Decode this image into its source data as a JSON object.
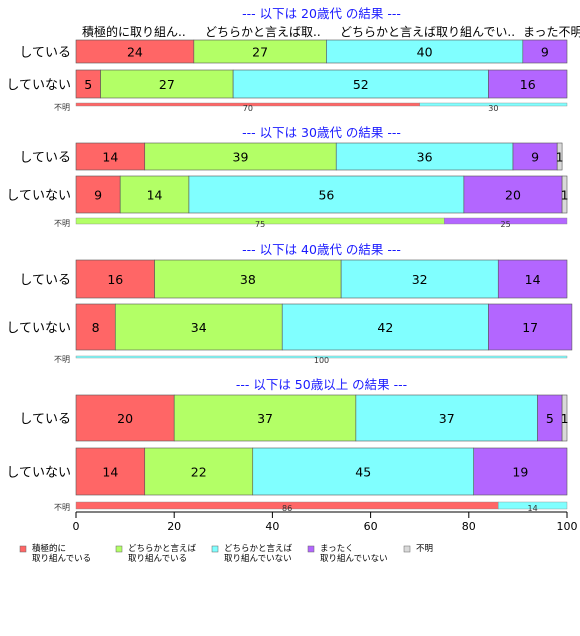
{
  "colors": {
    "series": [
      "#ff6666",
      "#b3ff66",
      "#80ffff",
      "#b366ff",
      "#d9d9d9"
    ],
    "title_text": "#1a1aff",
    "axis": "#000000"
  },
  "header_labels": [
    "積極的に取り組ん..",
    "どちらかと言えば取..",
    "どちらかと言えば取り組んでい..",
    "まった不明"
  ],
  "chart_data": {
    "type": "bar",
    "orientation": "horizontal",
    "stacked": true,
    "xlim": [
      0,
      100
    ],
    "x_ticks": [
      "0",
      "20",
      "40",
      "60",
      "80",
      "100"
    ],
    "legend_position": "bottom",
    "legend": [
      {
        "lines": [
          "積極的に",
          "取り組んでいる"
        ]
      },
      {
        "lines": [
          "どちらかと言えば",
          "取り組んでいる"
        ]
      },
      {
        "lines": [
          "どちらかと言えば",
          "取り組んでいない"
        ]
      },
      {
        "lines": [
          "まったく",
          "取り組んでいない"
        ]
      },
      {
        "lines": [
          "不明"
        ]
      }
    ],
    "panels": [
      {
        "title": "--- 以下は 20歳代 の結果 ---",
        "rows": [
          {
            "label": "している",
            "values": [
              24,
              27,
              40,
              9,
              0
            ]
          },
          {
            "label": "していない",
            "values": [
              5,
              27,
              52,
              16,
              0
            ]
          }
        ],
        "unknown_row": {
          "label": "不明",
          "values": [
            70,
            0,
            30,
            0,
            0
          ]
        }
      },
      {
        "title": "--- 以下は 30歳代 の結果 ---",
        "rows": [
          {
            "label": "している",
            "values": [
              14,
              39,
              36,
              9,
              1
            ]
          },
          {
            "label": "していない",
            "values": [
              9,
              14,
              56,
              20,
              1
            ]
          }
        ],
        "unknown_row": {
          "label": "不明",
          "values": [
            0,
            75,
            0,
            25,
            0
          ]
        }
      },
      {
        "title": "--- 以下は 40歳代 の結果 ---",
        "rows": [
          {
            "label": "している",
            "values": [
              16,
              38,
              32,
              14,
              0
            ]
          },
          {
            "label": "していない",
            "values": [
              8,
              34,
              42,
              17,
              0
            ]
          }
        ],
        "unknown_row": {
          "label": "不明",
          "values": [
            0,
            0,
            100,
            0,
            0
          ]
        }
      },
      {
        "title": "--- 以下は 50歳以上 の結果 ---",
        "rows": [
          {
            "label": "している",
            "values": [
              20,
              37,
              37,
              5,
              1
            ]
          },
          {
            "label": "していない",
            "values": [
              14,
              22,
              45,
              19,
              0
            ]
          }
        ],
        "unknown_row": {
          "label": "不明",
          "values": [
            86,
            0,
            14,
            0,
            0
          ]
        }
      }
    ]
  }
}
